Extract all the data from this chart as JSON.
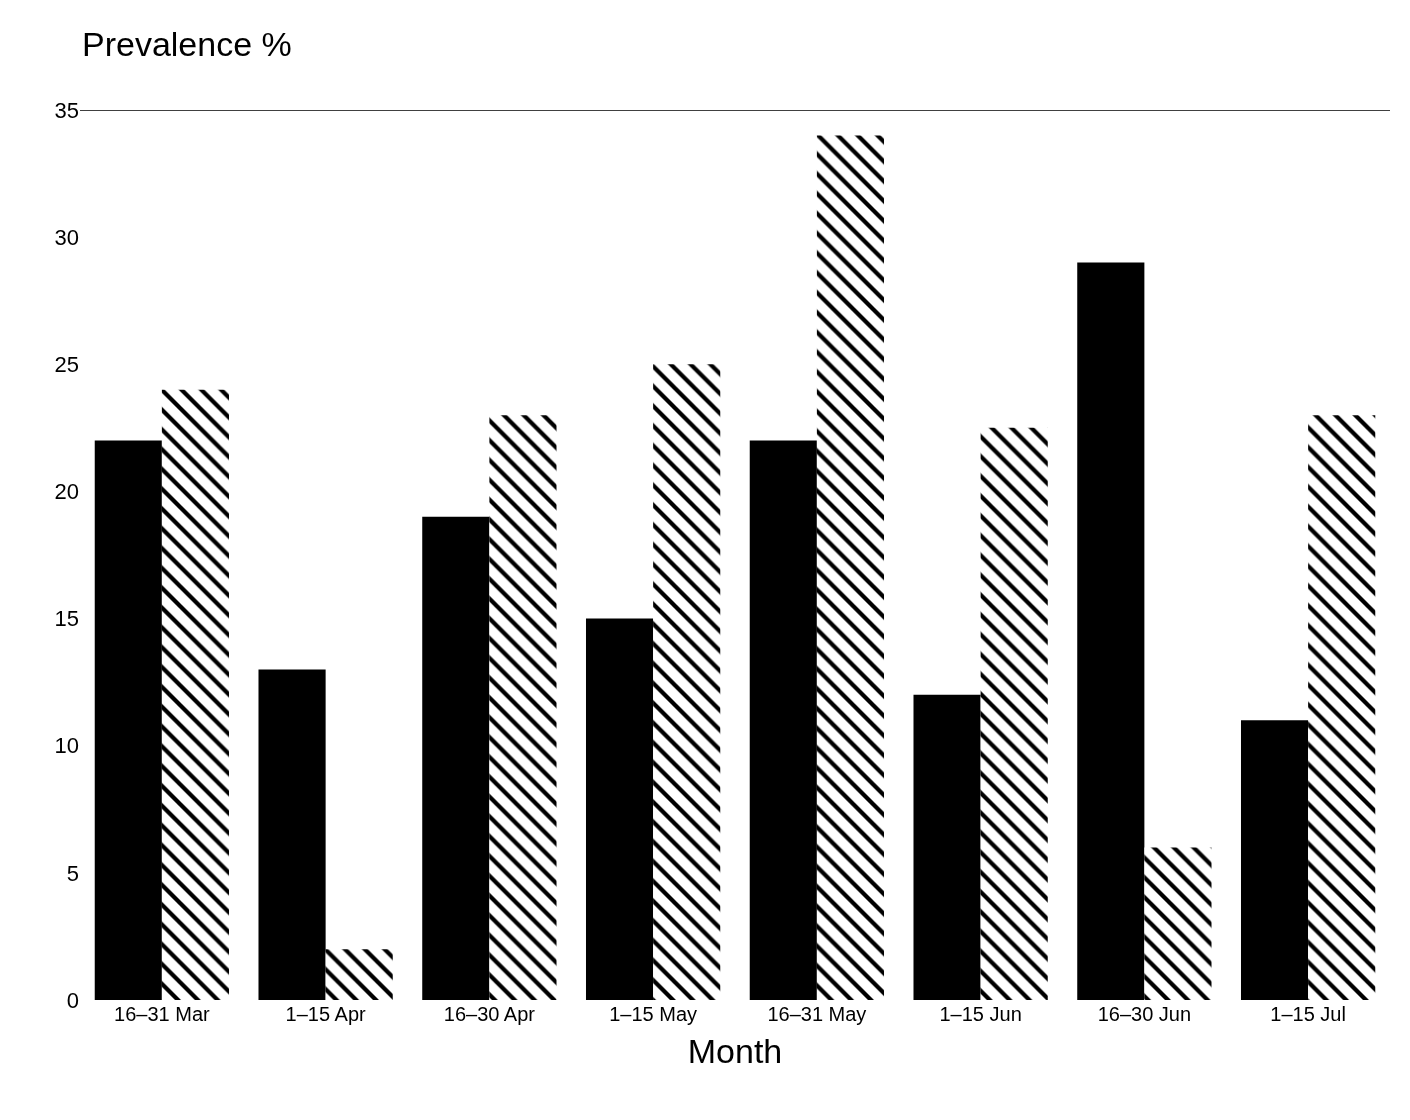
{
  "chart_data": {
    "type": "bar",
    "ylabel": "Prevalence %",
    "xlabel": "Month",
    "categories": [
      "16–31 Mar",
      "1–15 Apr",
      "16–30 Apr",
      "1–15 May",
      "16–31 May",
      "1–15 Jun",
      "16–30 Jun",
      "1–15 Jul"
    ],
    "series": [
      {
        "color": "#000000",
        "values": [
          22,
          13,
          19,
          15,
          22,
          12,
          29,
          11
        ]
      },
      {
        "color": "#000000",
        "values": [
          24,
          2,
          23,
          25,
          34,
          22.5,
          6,
          23
        ]
      }
    ],
    "ylim": [
      0,
      35
    ],
    "yticks": [
      0,
      5,
      10,
      15,
      20,
      25,
      30,
      35
    ]
  }
}
